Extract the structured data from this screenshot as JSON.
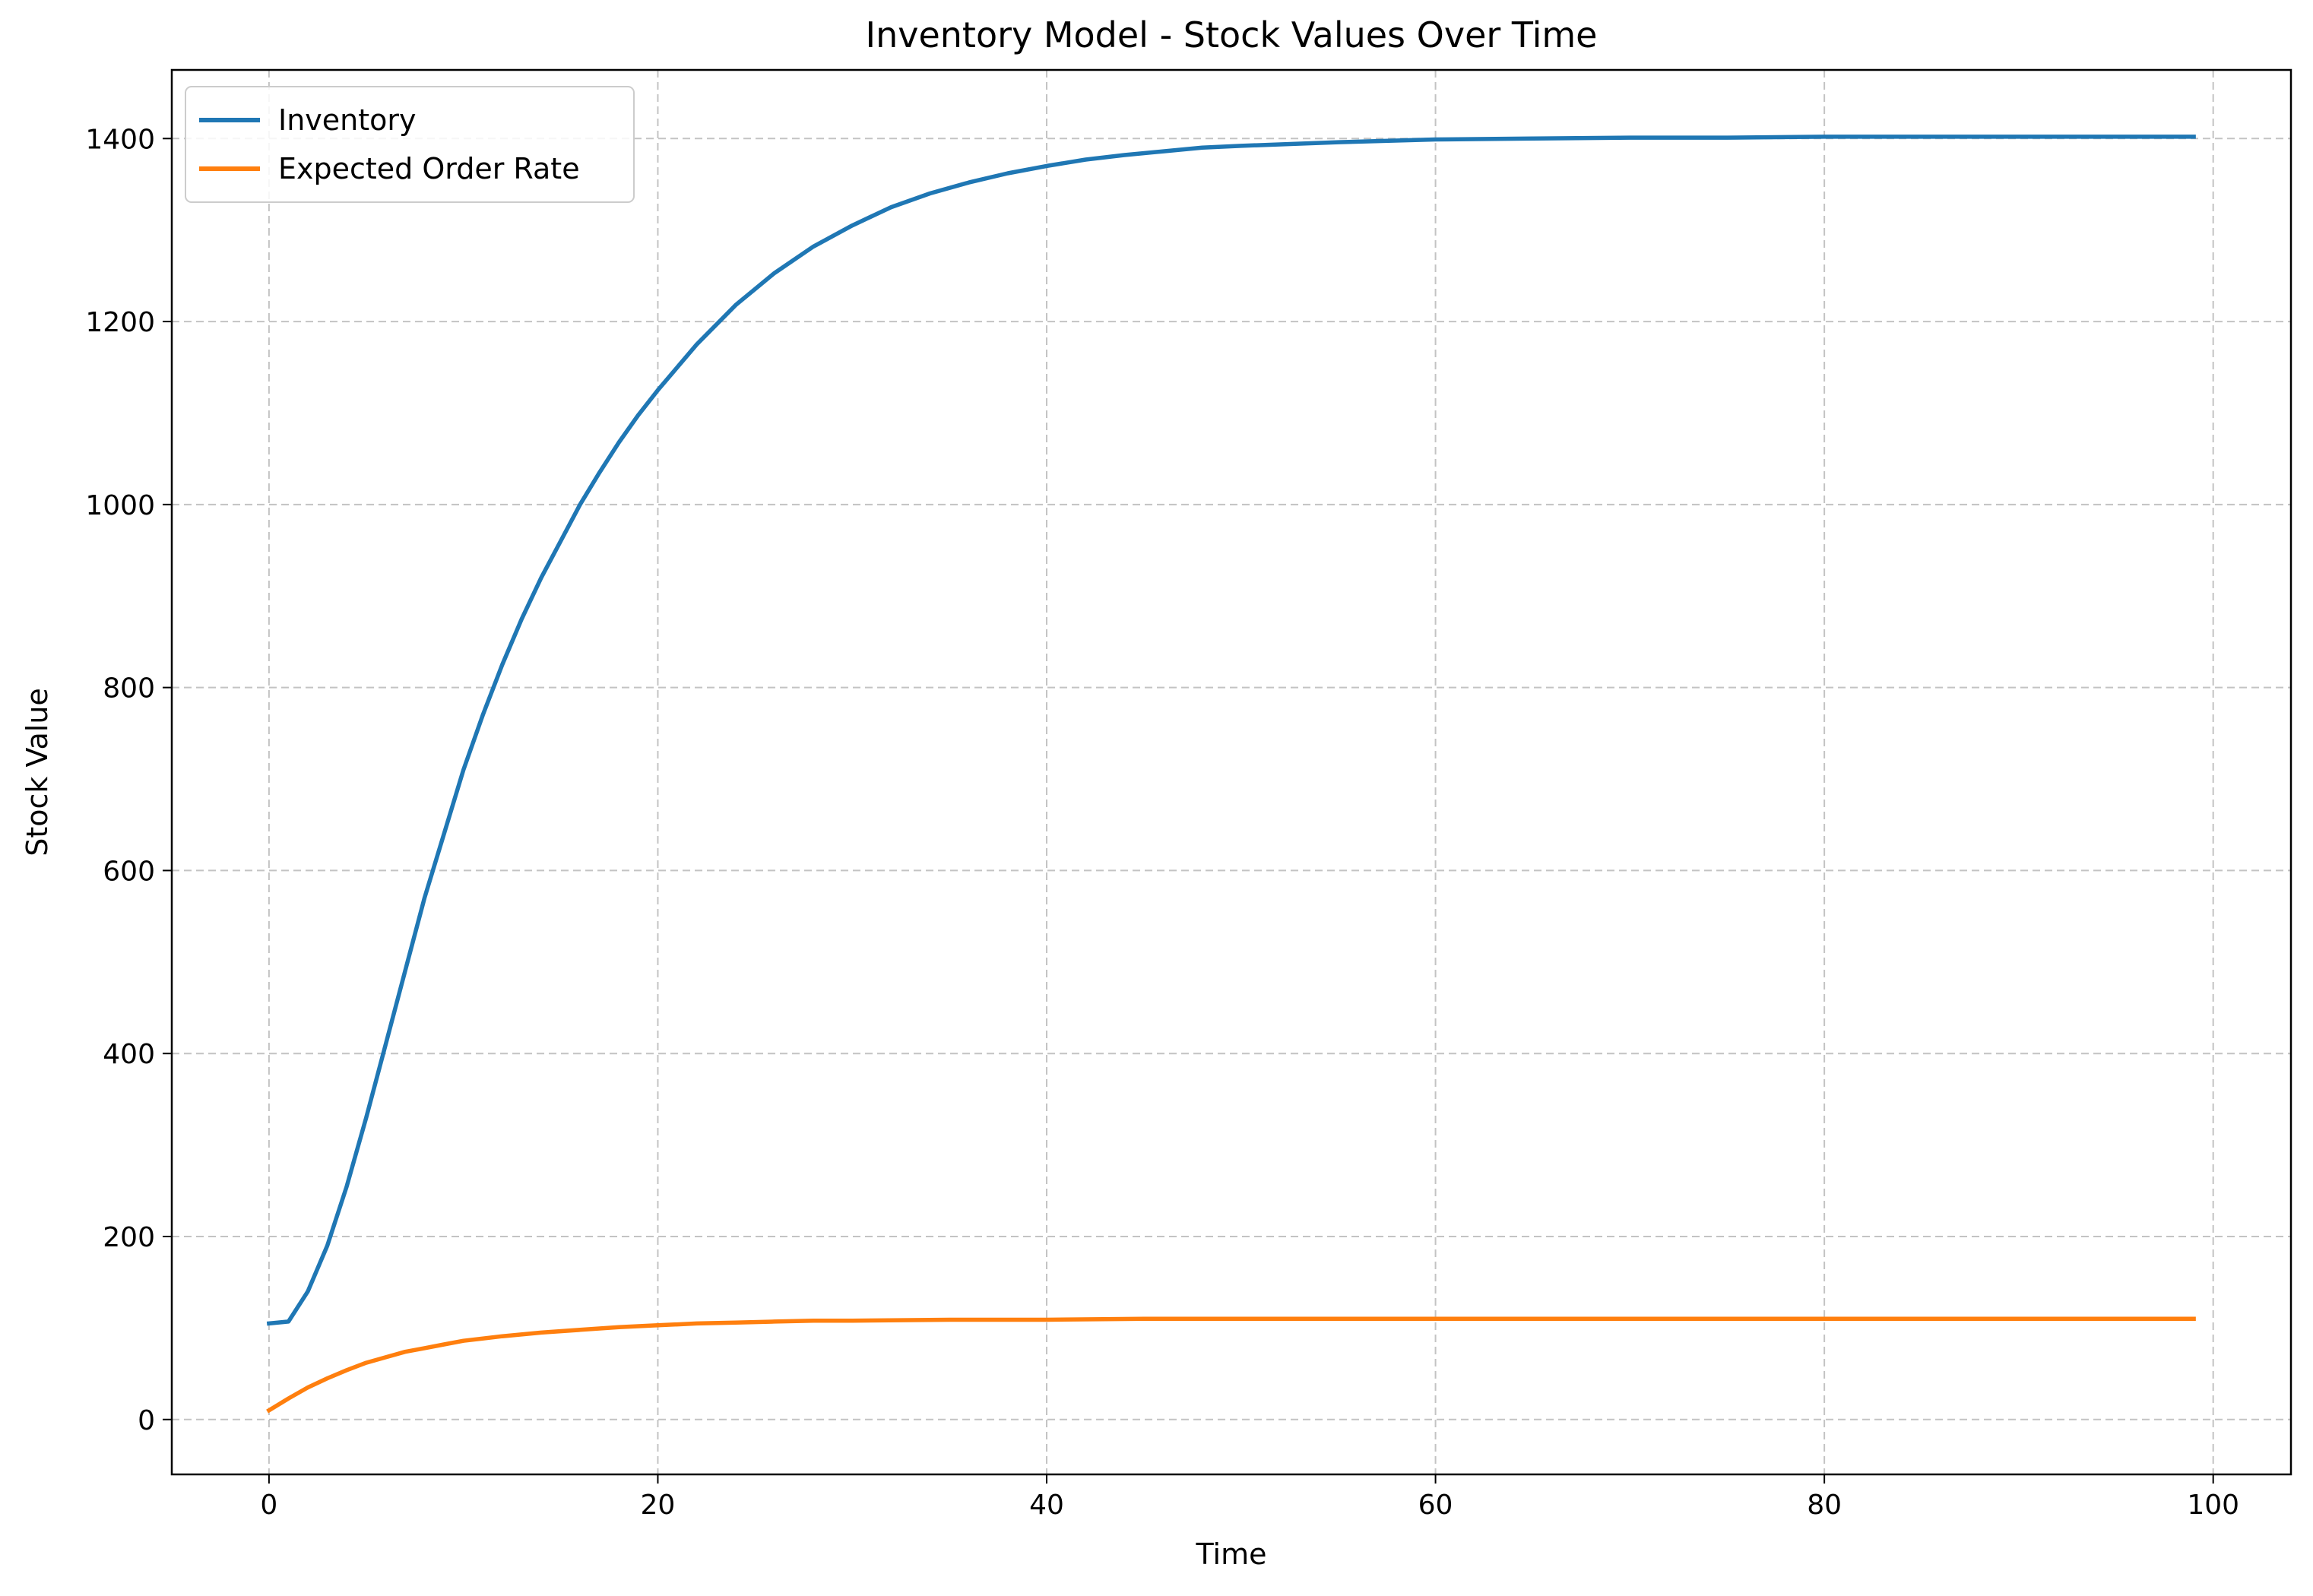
{
  "chart_data": {
    "type": "line",
    "title": "Inventory Model - Stock Values Over Time",
    "xlabel": "Time",
    "ylabel": "Stock Value",
    "xlim": [
      -5,
      104
    ],
    "ylim": [
      -60,
      1475
    ],
    "xticks": [
      0,
      20,
      40,
      60,
      80,
      100
    ],
    "yticks": [
      0,
      200,
      400,
      600,
      800,
      1000,
      1200,
      1400
    ],
    "grid": true,
    "legend": "top-left",
    "series": [
      {
        "name": "Inventory",
        "color": "#1f77b4",
        "x": [
          0,
          1,
          2,
          3,
          4,
          5,
          6,
          7,
          8,
          9,
          10,
          11,
          12,
          13,
          14,
          15,
          16,
          17,
          18,
          19,
          20,
          22,
          24,
          26,
          28,
          30,
          32,
          34,
          36,
          38,
          40,
          42,
          44,
          46,
          48,
          50,
          55,
          60,
          65,
          70,
          75,
          80,
          85,
          90,
          95,
          99
        ],
        "y": [
          105,
          107,
          140,
          190,
          255,
          330,
          410,
          490,
          570,
          640,
          710,
          770,
          825,
          875,
          920,
          960,
          1000,
          1035,
          1068,
          1098,
          1125,
          1175,
          1218,
          1253,
          1282,
          1305,
          1325,
          1340,
          1352,
          1362,
          1370,
          1377,
          1382,
          1386,
          1390,
          1392,
          1396,
          1399,
          1400,
          1401,
          1401,
          1402,
          1402,
          1402,
          1402,
          1402
        ]
      },
      {
        "name": "Expected Order Rate",
        "color": "#ff7f0e",
        "x": [
          0,
          1,
          2,
          3,
          4,
          5,
          6,
          7,
          8,
          9,
          10,
          12,
          14,
          16,
          18,
          20,
          22,
          24,
          26,
          28,
          30,
          35,
          40,
          45,
          50,
          60,
          70,
          80,
          90,
          99
        ],
        "y": [
          10,
          23,
          35,
          45,
          54,
          62,
          68,
          74,
          78,
          82,
          86,
          91,
          95,
          98,
          101,
          103,
          105,
          106,
          107,
          108,
          108,
          109,
          109,
          110,
          110,
          110,
          110,
          110,
          110,
          110
        ]
      }
    ]
  }
}
